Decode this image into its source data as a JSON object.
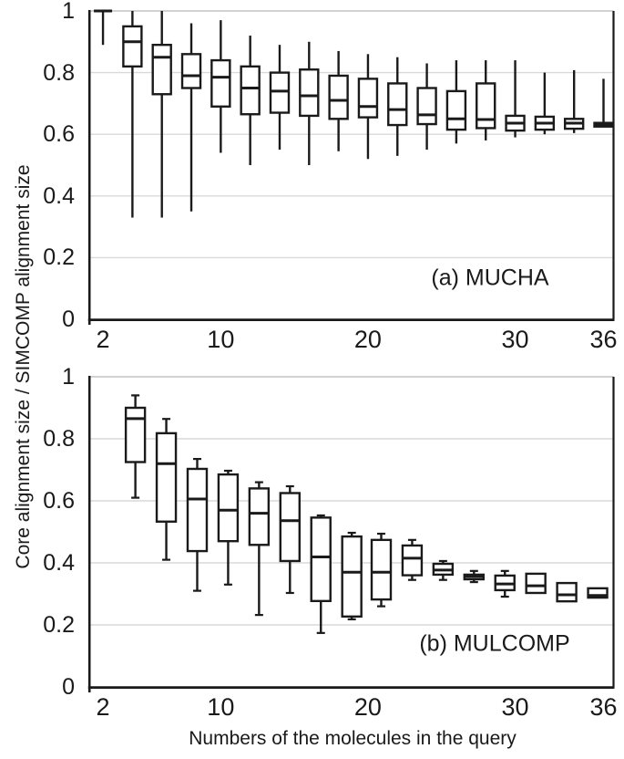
{
  "figure": {
    "x_axis_title": "Numbers of the molecules in the query",
    "y_axis_title": "Core alignment size / SIMCOMP alignment size",
    "background_color": "#ffffff",
    "ink_color": "#1a1a1a",
    "gridline_color": "#d9d9d9",
    "top_border_color": "#c4c4c4"
  },
  "chart_data": [
    {
      "type": "boxplot",
      "panel": "a",
      "panel_label": "(a) MUCHA",
      "ylabel": "Core alignment size / SIMCOMP alignment size",
      "xlabel": "Numbers of the molecules in the query",
      "xlim": [
        1.13,
        36.68
      ],
      "ylim": [
        0,
        1
      ],
      "grid": "horizontal",
      "legend": "none",
      "whisker_caps": false,
      "y_ticks": [
        0,
        0.2,
        0.4,
        0.6,
        0.8,
        1
      ],
      "y_tick_labels": [
        "0",
        "0.2",
        "0.4",
        "0.6",
        "0.8",
        "1"
      ],
      "x_ticks": [
        2,
        10,
        20,
        30,
        36
      ],
      "x_tick_labels": [
        "2",
        "10",
        "20",
        "30",
        "36"
      ],
      "boxes": [
        {
          "x": 2,
          "low": 0.89,
          "q1": 1.0,
          "median": 1.0,
          "q3": 1.0,
          "high": 1.0
        },
        {
          "x": 4,
          "low": 0.33,
          "q1": 0.82,
          "median": 0.9,
          "q3": 0.95,
          "high": 1.0
        },
        {
          "x": 6,
          "low": 0.33,
          "q1": 0.73,
          "median": 0.85,
          "q3": 0.89,
          "high": 1.0
        },
        {
          "x": 8,
          "low": 0.35,
          "q1": 0.75,
          "median": 0.79,
          "q3": 0.86,
          "high": 0.96
        },
        {
          "x": 10,
          "low": 0.54,
          "q1": 0.69,
          "median": 0.785,
          "q3": 0.84,
          "high": 0.97
        },
        {
          "x": 12,
          "low": 0.5,
          "q1": 0.665,
          "median": 0.75,
          "q3": 0.82,
          "high": 0.92
        },
        {
          "x": 14,
          "low": 0.55,
          "q1": 0.67,
          "median": 0.74,
          "q3": 0.8,
          "high": 0.89
        },
        {
          "x": 16,
          "low": 0.5,
          "q1": 0.66,
          "median": 0.725,
          "q3": 0.81,
          "high": 0.9
        },
        {
          "x": 18,
          "low": 0.545,
          "q1": 0.65,
          "median": 0.71,
          "q3": 0.79,
          "high": 0.87
        },
        {
          "x": 20,
          "low": 0.52,
          "q1": 0.655,
          "median": 0.69,
          "q3": 0.78,
          "high": 0.86
        },
        {
          "x": 22,
          "low": 0.53,
          "q1": 0.63,
          "median": 0.68,
          "q3": 0.765,
          "high": 0.85
        },
        {
          "x": 24,
          "low": 0.55,
          "q1": 0.633,
          "median": 0.663,
          "q3": 0.75,
          "high": 0.83
        },
        {
          "x": 26,
          "low": 0.57,
          "q1": 0.615,
          "median": 0.65,
          "q3": 0.74,
          "high": 0.84
        },
        {
          "x": 28,
          "low": 0.58,
          "q1": 0.62,
          "median": 0.648,
          "q3": 0.765,
          "high": 0.84
        },
        {
          "x": 30,
          "low": 0.59,
          "q1": 0.612,
          "median": 0.636,
          "q3": 0.66,
          "high": 0.84
        },
        {
          "x": 32,
          "low": 0.6,
          "q1": 0.615,
          "median": 0.636,
          "q3": 0.657,
          "high": 0.8
        },
        {
          "x": 34,
          "low": 0.604,
          "q1": 0.618,
          "median": 0.636,
          "q3": 0.65,
          "high": 0.808
        },
        {
          "x": 36,
          "low": 0.625,
          "q1": 0.625,
          "median": 0.63,
          "q3": 0.637,
          "high": 0.78
        }
      ]
    },
    {
      "type": "boxplot",
      "panel": "b",
      "panel_label": "(b) MULCOMP",
      "ylabel": "Core alignment size / SIMCOMP alignment size",
      "xlabel": "Numbers of the molecules in the query",
      "xlim": [
        1.13,
        36.68
      ],
      "ylim": [
        0,
        1
      ],
      "grid": "horizontal",
      "legend": "none",
      "whisker_caps": true,
      "y_ticks": [
        0,
        0.2,
        0.4,
        0.6,
        0.8,
        1
      ],
      "y_tick_labels": [
        "0",
        "0.2",
        "0.4",
        "0.6",
        "0.8",
        "1"
      ],
      "x_ticks": [
        2,
        10,
        20,
        30,
        36
      ],
      "x_tick_labels": [
        "2",
        "10",
        "20",
        "30",
        "36"
      ],
      "boxes": [
        {
          "x": 4.2,
          "low": 0.61,
          "q1": 0.725,
          "median": 0.865,
          "q3": 0.9,
          "high": 0.94
        },
        {
          "x": 6.3,
          "low": 0.41,
          "q1": 0.533,
          "median": 0.72,
          "q3": 0.818,
          "high": 0.864
        },
        {
          "x": 8.4,
          "low": 0.31,
          "q1": 0.438,
          "median": 0.606,
          "q3": 0.703,
          "high": 0.735
        },
        {
          "x": 10.5,
          "low": 0.33,
          "q1": 0.47,
          "median": 0.57,
          "q3": 0.685,
          "high": 0.697
        },
        {
          "x": 12.6,
          "low": 0.232,
          "q1": 0.458,
          "median": 0.56,
          "q3": 0.64,
          "high": 0.66
        },
        {
          "x": 14.7,
          "low": 0.303,
          "q1": 0.406,
          "median": 0.536,
          "q3": 0.625,
          "high": 0.647
        },
        {
          "x": 16.8,
          "low": 0.174,
          "q1": 0.277,
          "median": 0.419,
          "q3": 0.546,
          "high": 0.553
        },
        {
          "x": 18.9,
          "low": 0.218,
          "q1": 0.227,
          "median": 0.37,
          "q3": 0.485,
          "high": 0.497
        },
        {
          "x": 20.9,
          "low": 0.26,
          "q1": 0.282,
          "median": 0.37,
          "q3": 0.474,
          "high": 0.494
        },
        {
          "x": 23.0,
          "low": 0.345,
          "q1": 0.36,
          "median": 0.415,
          "q3": 0.456,
          "high": 0.474
        },
        {
          "x": 25.1,
          "low": 0.345,
          "q1": 0.362,
          "median": 0.377,
          "q3": 0.397,
          "high": 0.406
        },
        {
          "x": 27.2,
          "low": 0.338,
          "q1": 0.347,
          "median": 0.356,
          "q3": 0.362,
          "high": 0.374
        },
        {
          "x": 29.3,
          "low": 0.291,
          "q1": 0.312,
          "median": 0.332,
          "q3": 0.359,
          "high": 0.374
        },
        {
          "x": 31.4,
          "low": 0.303,
          "q1": 0.303,
          "median": 0.326,
          "q3": 0.365,
          "high": 0.365
        },
        {
          "x": 33.5,
          "low": 0.276,
          "q1": 0.276,
          "median": 0.297,
          "q3": 0.335,
          "high": 0.335
        },
        {
          "x": 35.6,
          "low": 0.288,
          "q1": 0.288,
          "median": 0.295,
          "q3": 0.318,
          "high": 0.318
        }
      ]
    }
  ]
}
